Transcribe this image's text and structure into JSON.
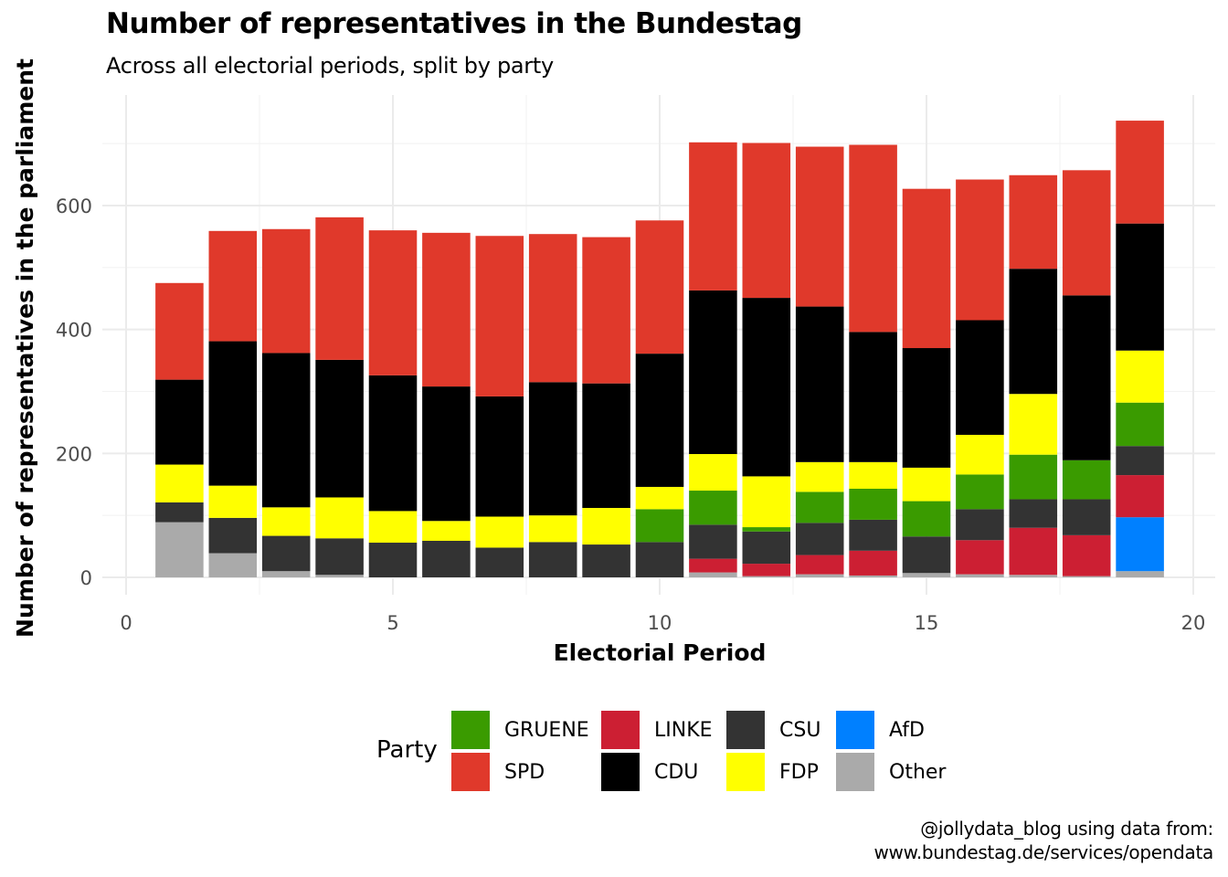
{
  "title": "Number of representatives in the Bundestag",
  "subtitle": "Across all electorial periods, split by party",
  "caption": {
    "line1": "@jollydata_blog using data from:",
    "line2": "www.bundestag.de/services/opendata"
  },
  "legend": {
    "title": "Party",
    "items": [
      {
        "label": "GRUENE",
        "color": "#3a9b00"
      },
      {
        "label": "SPD",
        "color": "#e0392b"
      },
      {
        "label": "LINKE",
        "color": "#cc1f33"
      },
      {
        "label": "CDU",
        "color": "#000000"
      },
      {
        "label": "CSU",
        "color": "#333333"
      },
      {
        "label": "FDP",
        "color": "#ffff00"
      },
      {
        "label": "AfD",
        "color": "#0080ff"
      },
      {
        "label": "Other",
        "color": "#aaaaaa"
      }
    ]
  },
  "chart_data": {
    "type": "bar",
    "stacked": true,
    "title": "Number of representatives in the Bundestag",
    "subtitle": "Across all electorial periods, split by party",
    "xlabel": "Electorial Period",
    "ylabel": "Number of representatives in the parliament",
    "x": [
      1,
      2,
      3,
      4,
      5,
      6,
      7,
      8,
      9,
      10,
      11,
      12,
      13,
      14,
      15,
      16,
      17,
      18,
      19
    ],
    "xlim": [
      0,
      20
    ],
    "ylim": [
      0,
      700
    ],
    "xticks": [
      0,
      5,
      10,
      15,
      20
    ],
    "yticks": [
      0,
      200,
      400,
      600
    ],
    "grid": true,
    "legend_position": "bottom",
    "stack_order_bottom_to_top": [
      "Other",
      "AfD",
      "LINKE",
      "CSU",
      "GRUENE",
      "FDP",
      "CDU",
      "SPD"
    ],
    "series": [
      {
        "name": "Other",
        "color": "#aaaaaa",
        "values": [
          89,
          39,
          10,
          4,
          0,
          0,
          0,
          0,
          0,
          0,
          8,
          2,
          5,
          3,
          7,
          5,
          4,
          2,
          10
        ]
      },
      {
        "name": "AfD",
        "color": "#0080ff",
        "values": [
          0,
          0,
          0,
          0,
          0,
          0,
          0,
          0,
          0,
          0,
          0,
          0,
          0,
          0,
          0,
          0,
          0,
          0,
          87
        ]
      },
      {
        "name": "LINKE",
        "color": "#cc1f33",
        "values": [
          0,
          0,
          0,
          0,
          0,
          0,
          0,
          0,
          0,
          0,
          22,
          20,
          31,
          40,
          0,
          55,
          76,
          66,
          68
        ]
      },
      {
        "name": "CSU",
        "color": "#333333",
        "values": [
          32,
          57,
          57,
          59,
          56,
          59,
          48,
          57,
          53,
          57,
          55,
          52,
          52,
          50,
          59,
          50,
          46,
          58,
          47
        ]
      },
      {
        "name": "GRUENE",
        "color": "#3a9b00",
        "values": [
          0,
          0,
          0,
          0,
          0,
          0,
          0,
          0,
          0,
          53,
          55,
          7,
          50,
          50,
          57,
          56,
          72,
          63,
          70
        ]
      },
      {
        "name": "FDP",
        "color": "#ffff00",
        "values": [
          61,
          52,
          46,
          66,
          51,
          32,
          50,
          43,
          59,
          36,
          59,
          82,
          48,
          43,
          54,
          64,
          98,
          0,
          84
        ]
      },
      {
        "name": "CDU",
        "color": "#000000",
        "values": [
          137,
          233,
          249,
          222,
          219,
          217,
          194,
          215,
          201,
          215,
          264,
          288,
          251,
          210,
          193,
          185,
          202,
          266,
          205
        ]
      },
      {
        "name": "SPD",
        "color": "#e0392b",
        "values": [
          156,
          178,
          200,
          230,
          234,
          248,
          259,
          239,
          236,
          215,
          239,
          250,
          258,
          302,
          257,
          227,
          151,
          202,
          166
        ]
      }
    ]
  }
}
